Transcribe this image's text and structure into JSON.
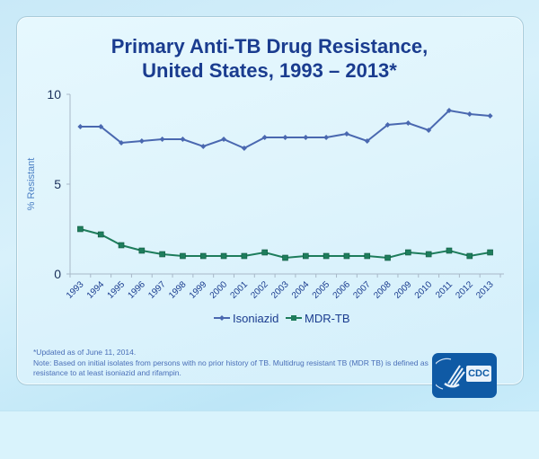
{
  "colors": {
    "isoniazid": "#4a68b0",
    "mdr_tb": "#1e7d5c",
    "title": "#1a3c8f",
    "axis_text": "#1a3c8f",
    "ylabel": "#4a7fc4",
    "logo_bg": "#0f5aa5"
  },
  "chart_data": {
    "type": "line",
    "title": "Primary Anti-TB Drug Resistance, United States, 1993 – 2013*",
    "title_lines": [
      "Primary Anti-TB Drug Resistance,",
      "United States, 1993 – 2013*"
    ],
    "xlabel": "",
    "ylabel": "% Resistant",
    "ylim": [
      0,
      10
    ],
    "yticks": [
      0,
      5,
      10
    ],
    "grid": false,
    "legend_position": "bottom-center",
    "categories": [
      "1993",
      "1994",
      "1995",
      "1996",
      "1997",
      "1998",
      "1999",
      "2000",
      "2001",
      "2002",
      "2003",
      "2004",
      "2005",
      "2006",
      "2007",
      "2008",
      "2009",
      "2010",
      "2011",
      "2012",
      "2013"
    ],
    "series": [
      {
        "name": "Isoniazid",
        "marker": "diamond",
        "values": [
          8.2,
          8.2,
          7.3,
          7.4,
          7.5,
          7.5,
          7.1,
          7.5,
          7.0,
          7.6,
          7.6,
          7.6,
          7.6,
          7.8,
          7.4,
          8.3,
          8.4,
          8.0,
          9.1,
          8.9,
          8.8
        ]
      },
      {
        "name": "MDR-TB",
        "marker": "square",
        "values": [
          2.5,
          2.2,
          1.6,
          1.3,
          1.1,
          1.0,
          1.0,
          1.0,
          1.0,
          1.2,
          0.9,
          1.0,
          1.0,
          1.0,
          1.0,
          0.9,
          1.2,
          1.1,
          1.3,
          1.0,
          1.2
        ]
      }
    ]
  },
  "footnotes": {
    "updated": "*Updated as of June 11, 2014.",
    "note": "Note: Based on initial isolates from persons with no prior history of TB. Multidrug resistant TB (MDR TB) is defined as resistance to at least isoniazid and rifampin."
  },
  "logo": {
    "text": "CDC"
  }
}
